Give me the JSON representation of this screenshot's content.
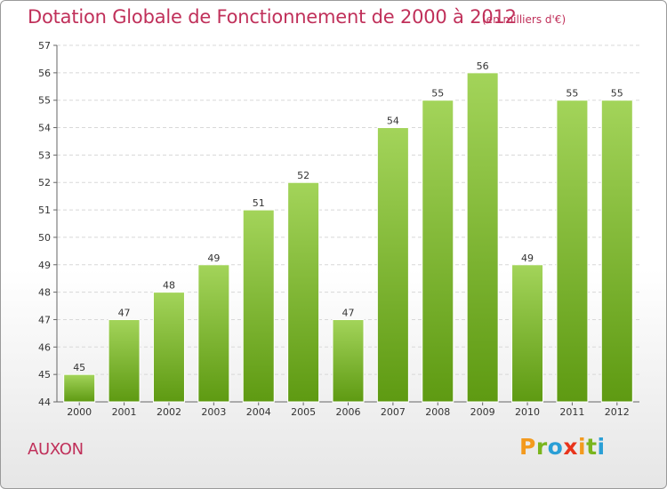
{
  "header": {
    "title": "Dotation Globale de Fonctionnement de 2000 à 2012",
    "unit_note": "(en milliers d'€)"
  },
  "footer": {
    "town": "AUXON",
    "brand": "Proxiti",
    "brand_colors": [
      "#f39a1e",
      "#7ab51d",
      "#2a9fd6",
      "#e8341c",
      "#f39a1e",
      "#7ab51d",
      "#2a9fd6"
    ]
  },
  "chart_data": {
    "type": "bar",
    "title": "Dotation Globale de Fonctionnement de 2000 à 2012",
    "subtitle": "(en milliers d'€)",
    "xlabel": "",
    "ylabel": "",
    "categories": [
      "2000",
      "2001",
      "2002",
      "2003",
      "2004",
      "2005",
      "2006",
      "2007",
      "2008",
      "2009",
      "2010",
      "2011",
      "2012"
    ],
    "values": [
      45,
      47,
      48,
      49,
      51,
      52,
      47,
      54,
      55,
      56,
      49,
      55,
      55
    ],
    "ylim": [
      44,
      57
    ],
    "yticks": [
      44,
      45,
      46,
      47,
      48,
      49,
      50,
      51,
      52,
      53,
      54,
      55,
      56,
      57
    ],
    "grid": true,
    "legend": "none",
    "bar_color_top": "#a3d45a",
    "bar_color_bottom": "#5e9a12",
    "title_color": "#c0305a"
  }
}
